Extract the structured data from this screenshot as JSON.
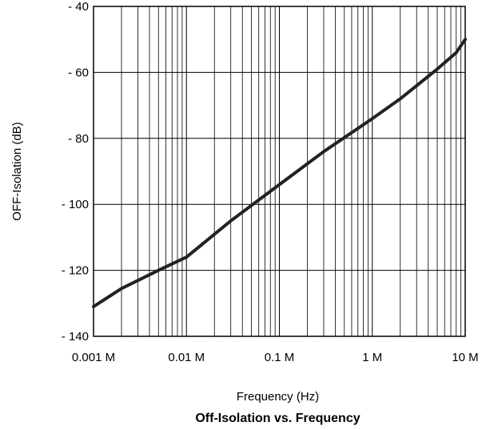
{
  "chart_data": {
    "type": "line",
    "title": "Off-Isolation vs. Frequency",
    "xlabel": "Frequency (Hz)",
    "ylabel": "OFF-Isolation (dB)",
    "x_scale": "log",
    "xlim": [
      "0.001 M",
      "10 M"
    ],
    "ylim": [
      -140,
      -40
    ],
    "grid": true,
    "x_ticks": [
      {
        "value": 0.001,
        "label": "0.001 M"
      },
      {
        "value": 0.01,
        "label": "0.01 M"
      },
      {
        "value": 0.1,
        "label": "0.1 M"
      },
      {
        "value": 1,
        "label": "1 M"
      },
      {
        "value": 10,
        "label": "10 M"
      }
    ],
    "y_ticks": [
      {
        "value": -40,
        "label": "- 40"
      },
      {
        "value": -60,
        "label": "- 60"
      },
      {
        "value": -80,
        "label": "- 80"
      },
      {
        "value": -100,
        "label": "- 100"
      },
      {
        "value": -120,
        "label": "- 120"
      },
      {
        "value": -140,
        "label": "- 140"
      }
    ],
    "series": [
      {
        "color": "#222222",
        "x": [
          0.001,
          0.002,
          0.005,
          0.01,
          0.03,
          0.1,
          0.3,
          1,
          2,
          5,
          8,
          10
        ],
        "y": [
          -131,
          -125.5,
          -120,
          -116,
          -105,
          -94,
          -84,
          -74,
          -68,
          -59,
          -54,
          -50
        ]
      }
    ]
  }
}
